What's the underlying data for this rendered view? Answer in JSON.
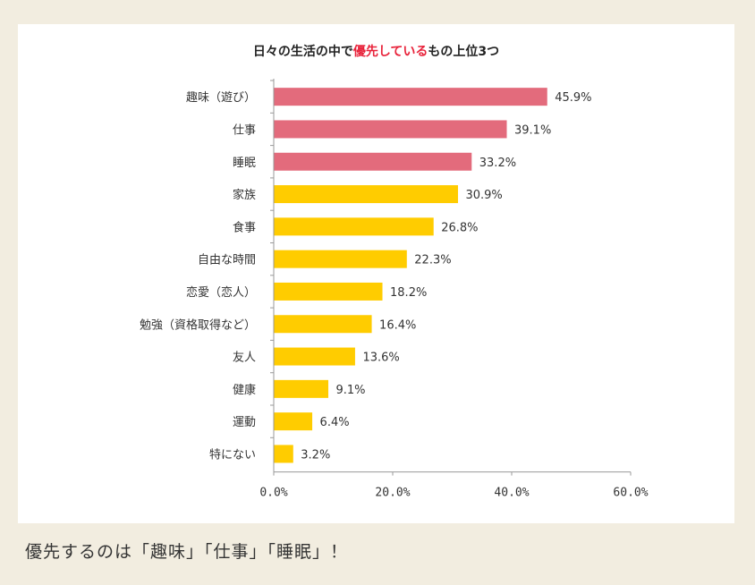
{
  "title": {
    "before": "日々の生活の中で",
    "highlight": "優先している",
    "after": "もの上位3つ"
  },
  "caption": "優先するのは「趣味」「仕事」「睡眠」！",
  "colors": {
    "top3": "#e36b7c",
    "rest": "#ffcc00",
    "highlight_text": "#e8223a"
  },
  "chart_data": {
    "type": "bar",
    "orientation": "horizontal",
    "categories": [
      "趣味（遊び）",
      "仕事",
      "睡眠",
      "家族",
      "食事",
      "自由な時間",
      "恋愛（恋人）",
      "勉強（資格取得など）",
      "友人",
      "健康",
      "運動",
      "特にない"
    ],
    "values": [
      45.9,
      39.1,
      33.2,
      30.9,
      26.8,
      22.3,
      18.2,
      16.4,
      13.6,
      9.1,
      6.4,
      3.2
    ],
    "value_labels": [
      "45.9%",
      "39.1%",
      "33.2%",
      "30.9%",
      "26.8%",
      "22.3%",
      "18.2%",
      "16.4%",
      "13.6%",
      "9.1%",
      "6.4%",
      "3.2%"
    ],
    "highlighted_count": 3,
    "xlim": [
      0,
      60
    ],
    "xticks": [
      0,
      20,
      40,
      60
    ],
    "xtick_labels": [
      "0.0%",
      "20.0%",
      "40.0%",
      "60.0%"
    ],
    "grid": false,
    "legend": "none"
  }
}
